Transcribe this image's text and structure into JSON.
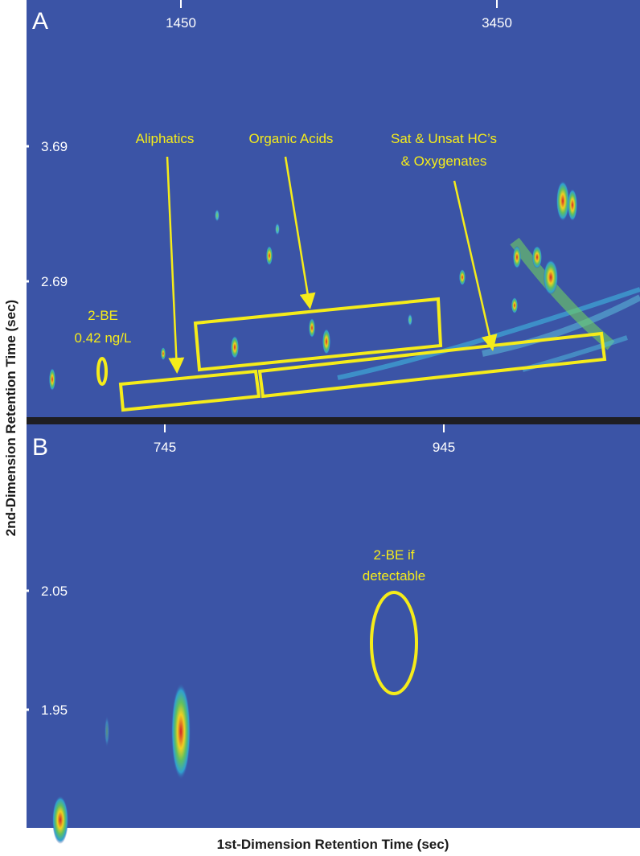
{
  "figure": {
    "y_axis_title": "2nd-Dimension Retention Time (sec)",
    "x_axis_title": "1st-Dimension Retention Time (sec)",
    "panels": [
      {
        "label": "A",
        "x_ticks": [
          "1450",
          "3450"
        ],
        "y_ticks": [
          "3.69",
          "2.69"
        ],
        "annotations": [
          "Aliphatics",
          "Organic Acids",
          "Sat & Unsat HC’s",
          "& Oxygenates",
          "2-BE",
          "0.42 ng/L"
        ]
      },
      {
        "label": "B",
        "x_ticks": [
          "745",
          "945"
        ],
        "y_ticks": [
          "2.05",
          "1.95"
        ],
        "annotations": [
          "2-BE if",
          "detectable"
        ]
      }
    ]
  }
}
